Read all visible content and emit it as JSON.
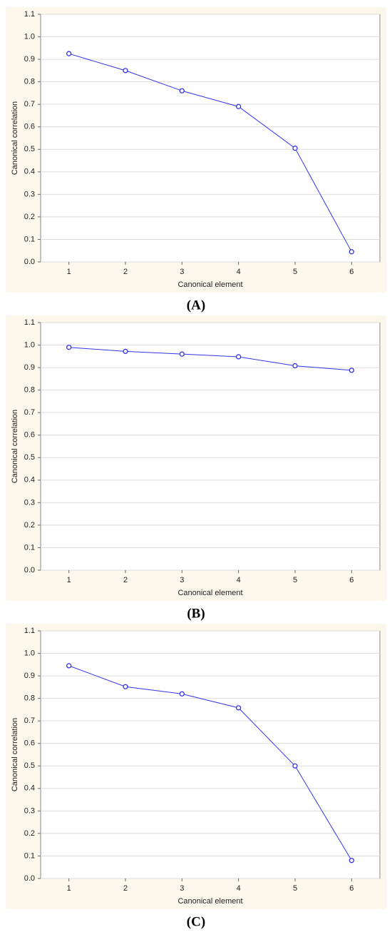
{
  "chart_data": [
    {
      "type": "line",
      "caption": "(A)",
      "xlabel": "Canonical element",
      "ylabel": "Canonical correlation",
      "x": [
        1,
        2,
        3,
        4,
        5,
        6
      ],
      "values": [
        0.925,
        0.85,
        0.76,
        0.69,
        0.505,
        0.045
      ],
      "color": "#3333ee",
      "xlim": [
        0.5,
        6.5
      ],
      "xticks": [
        1,
        2,
        3,
        4,
        5,
        6
      ],
      "ylim": [
        0,
        1.1
      ],
      "yticks": [
        {
          "value": 0,
          "label": "0.0"
        },
        0.1,
        0.2,
        0.3,
        0.4,
        0.5,
        0.6,
        0.7,
        0.8,
        0.9,
        {
          "value": 1,
          "label": "1.0"
        },
        1.1
      ],
      "grid": true
    },
    {
      "type": "line",
      "caption": "(B)",
      "xlabel": "Canonical element",
      "ylabel": "Canonical correlation",
      "x": [
        1,
        2,
        3,
        4,
        5,
        6
      ],
      "values": [
        0.99,
        0.972,
        0.96,
        0.948,
        0.908,
        0.888
      ],
      "color": "#3333ee",
      "xlim": [
        0.5,
        6.5
      ],
      "xticks": [
        1,
        2,
        3,
        4,
        5,
        6
      ],
      "ylim": [
        0,
        1.1
      ],
      "yticks": [
        {
          "value": 0,
          "label": "0.0"
        },
        0.1,
        0.2,
        0.3,
        0.4,
        0.5,
        0.6,
        0.7,
        0.8,
        0.9,
        {
          "value": 1,
          "label": "1.0"
        },
        1.1
      ],
      "grid": true
    },
    {
      "type": "line",
      "caption": "(C)",
      "xlabel": "Canonical element",
      "ylabel": "Canonical correlation",
      "x": [
        1,
        2,
        3,
        4,
        5,
        6
      ],
      "values": [
        0.945,
        0.852,
        0.82,
        0.758,
        0.5,
        0.08
      ],
      "color": "#3333ee",
      "xlim": [
        0.5,
        6.5
      ],
      "xticks": [
        1,
        2,
        3,
        4,
        5,
        6
      ],
      "ylim": [
        0,
        1.1
      ],
      "yticks": [
        {
          "value": 0,
          "label": "0.0"
        },
        0.1,
        0.2,
        0.3,
        0.4,
        0.5,
        0.6,
        0.7,
        0.8,
        0.9,
        {
          "value": 1,
          "label": "1.0"
        },
        1.1
      ],
      "grid": true
    }
  ]
}
